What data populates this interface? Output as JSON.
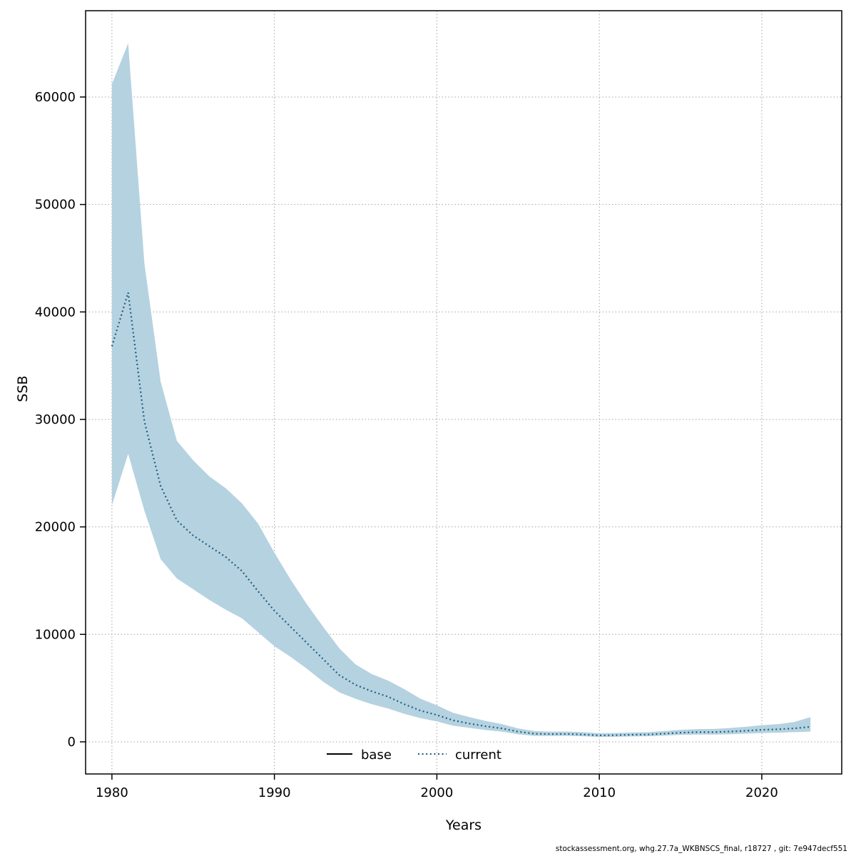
{
  "footer": {
    "text": "stockassessment.org, whg.27.7a_WKBNSCS_final, r18727 , git: 7e947decf551"
  },
  "chart_data": {
    "type": "line",
    "title": "",
    "xlabel": "Years",
    "ylabel": "SSB",
    "x_range": [
      1978.38,
      2024.92
    ],
    "y_range": [
      -2990,
      68030
    ],
    "x_ticks": [
      1980,
      1990,
      2000,
      2010,
      2020
    ],
    "y_ticks": [
      0,
      10000,
      20000,
      30000,
      40000,
      50000,
      60000
    ],
    "grid": true,
    "legend_position": "bottom-center-inside",
    "colors": {
      "band": "#b5d2e0",
      "line": "#1f5f80",
      "grid": "#a3a3a3"
    },
    "legend": [
      {
        "label": "base",
        "style": "solid",
        "color": "#000000"
      },
      {
        "label": "current",
        "style": "dotted",
        "color": "#1f5f80"
      }
    ],
    "x": [
      1980,
      1981,
      1982,
      1983,
      1984,
      1985,
      1986,
      1987,
      1988,
      1989,
      1990,
      1991,
      1992,
      1993,
      1994,
      1995,
      1996,
      1997,
      1998,
      1999,
      2000,
      2001,
      2002,
      2003,
      2004,
      2005,
      2006,
      2007,
      2008,
      2009,
      2010,
      2011,
      2012,
      2013,
      2014,
      2015,
      2016,
      2017,
      2018,
      2019,
      2020,
      2021,
      2022,
      2023
    ],
    "series": [
      {
        "name": "current",
        "values": [
          36800,
          41800,
          29800,
          23800,
          20600,
          19200,
          18200,
          17200,
          15900,
          14000,
          12200,
          10700,
          9200,
          7700,
          6200,
          5300,
          4700,
          4200,
          3500,
          2900,
          2500,
          2000,
          1700,
          1450,
          1250,
          950,
          750,
          720,
          730,
          680,
          600,
          620,
          660,
          680,
          760,
          850,
          900,
          900,
          950,
          1030,
          1120,
          1170,
          1250,
          1400
        ]
      }
    ],
    "band": {
      "name": "confidence-interval",
      "lo": [
        22000,
        26800,
        21500,
        17000,
        15200,
        14200,
        13200,
        12300,
        11500,
        10200,
        8900,
        7900,
        6800,
        5600,
        4600,
        4000,
        3500,
        3100,
        2600,
        2200,
        1900,
        1500,
        1300,
        1100,
        950,
        700,
        550,
        550,
        560,
        520,
        450,
        470,
        500,
        520,
        580,
        650,
        680,
        680,
        700,
        760,
        820,
        850,
        900,
        950
      ],
      "hi": [
        61200,
        65000,
        44500,
        33500,
        28000,
        26200,
        24700,
        23600,
        22200,
        20300,
        17600,
        15100,
        12800,
        10700,
        8700,
        7200,
        6300,
        5700,
        4900,
        4000,
        3400,
        2700,
        2300,
        1950,
        1650,
        1250,
        1000,
        950,
        960,
        900,
        800,
        820,
        870,
        900,
        1000,
        1120,
        1180,
        1200,
        1280,
        1400,
        1550,
        1650,
        1850,
        2300
      ]
    }
  }
}
